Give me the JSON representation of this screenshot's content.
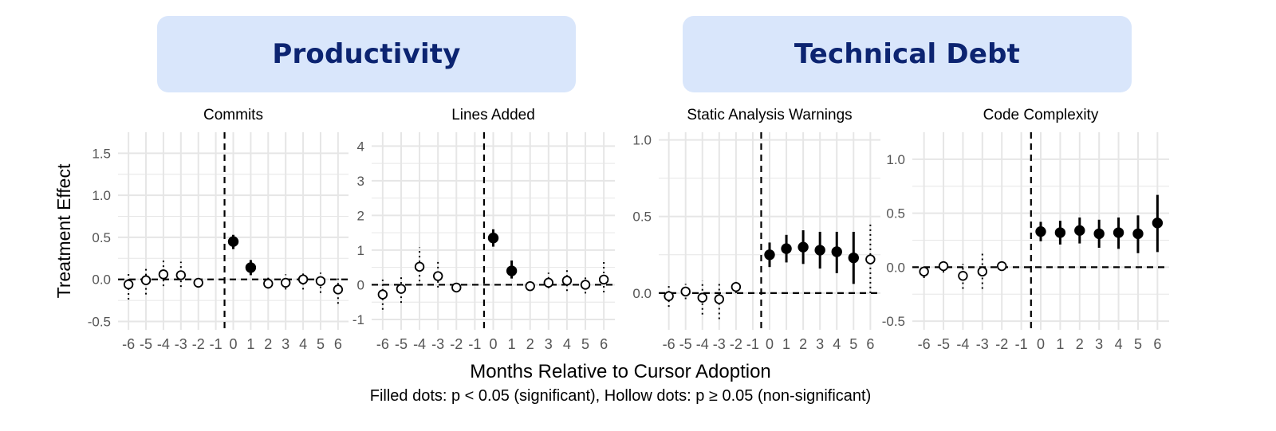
{
  "groups": [
    {
      "label": "Productivity"
    },
    {
      "label": "Technical Debt"
    }
  ],
  "colors": {
    "group_box": "#d9e6fb",
    "group_text": "#0c2471",
    "grid": "#e6e6e6",
    "marker": "#000000"
  },
  "x_axis_title": "Months Relative to Cursor Adoption",
  "y_axis_title": "Treatment Effect",
  "footnote": "Filled dots: p < 0.05 (significant), Hollow dots: p ≥ 0.05 (non-significant)",
  "chart_data": [
    {
      "type": "scatter",
      "title": "Commits",
      "x": [
        -6,
        -5,
        -4,
        -3,
        -2,
        -1,
        0,
        1,
        2,
        3,
        4,
        5,
        6
      ],
      "xticks": [
        "-6",
        "-5",
        "-4",
        "-3",
        "-2",
        "-1",
        "0",
        "1",
        "2",
        "3",
        "4",
        "5",
        "6"
      ],
      "ylim": [
        -0.6,
        1.75
      ],
      "yticks": [
        -0.5,
        0.0,
        0.5,
        1.0,
        1.5
      ],
      "ytick_labels": [
        "-0.5",
        "0.0",
        "0.5",
        "1.0",
        "1.5"
      ],
      "points": [
        {
          "x": -6,
          "y": -0.06,
          "lo": -0.24,
          "hi": 0.1,
          "sig": false
        },
        {
          "x": -5,
          "y": -0.01,
          "lo": -0.18,
          "hi": 0.15,
          "sig": false
        },
        {
          "x": -4,
          "y": 0.06,
          "lo": -0.08,
          "hi": 0.24,
          "sig": false
        },
        {
          "x": -3,
          "y": 0.05,
          "lo": -0.09,
          "hi": 0.21,
          "sig": false
        },
        {
          "x": -2,
          "y": -0.04,
          "lo": -0.08,
          "hi": 0.01,
          "sig": false
        },
        {
          "x": 0,
          "y": 0.45,
          "lo": 0.36,
          "hi": 0.53,
          "sig": true
        },
        {
          "x": 1,
          "y": 0.14,
          "lo": 0.05,
          "hi": 0.23,
          "sig": true
        },
        {
          "x": 2,
          "y": -0.05,
          "lo": -0.11,
          "hi": 0.02,
          "sig": false
        },
        {
          "x": 3,
          "y": -0.04,
          "lo": -0.12,
          "hi": 0.06,
          "sig": false
        },
        {
          "x": 4,
          "y": 0.0,
          "lo": -0.12,
          "hi": 0.1,
          "sig": false
        },
        {
          "x": 5,
          "y": -0.02,
          "lo": -0.16,
          "hi": 0.08,
          "sig": false
        },
        {
          "x": 6,
          "y": -0.12,
          "lo": -0.29,
          "hi": 0.01,
          "sig": false
        }
      ]
    },
    {
      "type": "scatter",
      "title": "Lines Added",
      "x": [
        -6,
        -5,
        -4,
        -3,
        -2,
        -1,
        0,
        1,
        2,
        3,
        4,
        5,
        6
      ],
      "xticks": [
        "-6",
        "-5",
        "-4",
        "-3",
        "-2",
        "-1",
        "0",
        "1",
        "2",
        "3",
        "4",
        "5",
        "6"
      ],
      "ylim": [
        -1.3,
        4.4
      ],
      "yticks": [
        -1,
        0,
        1,
        2,
        3,
        4
      ],
      "ytick_labels": [
        "-1",
        "0",
        "1",
        "2",
        "3",
        "4"
      ],
      "points": [
        {
          "x": -6,
          "y": -0.28,
          "lo": -0.72,
          "hi": 0.15,
          "sig": false
        },
        {
          "x": -5,
          "y": -0.12,
          "lo": -0.52,
          "hi": 0.28,
          "sig": false
        },
        {
          "x": -4,
          "y": 0.52,
          "lo": 0.1,
          "hi": 1.08,
          "sig": false
        },
        {
          "x": -3,
          "y": 0.25,
          "lo": -0.08,
          "hi": 0.68,
          "sig": false
        },
        {
          "x": -2,
          "y": -0.08,
          "lo": -0.18,
          "hi": 0.05,
          "sig": false
        },
        {
          "x": 0,
          "y": 1.35,
          "lo": 1.1,
          "hi": 1.6,
          "sig": true
        },
        {
          "x": 1,
          "y": 0.4,
          "lo": 0.18,
          "hi": 0.7,
          "sig": true
        },
        {
          "x": 2,
          "y": -0.04,
          "lo": -0.14,
          "hi": 0.1,
          "sig": false
        },
        {
          "x": 3,
          "y": 0.06,
          "lo": -0.1,
          "hi": 0.35,
          "sig": false
        },
        {
          "x": 4,
          "y": 0.12,
          "lo": -0.18,
          "hi": 0.48,
          "sig": false
        },
        {
          "x": 5,
          "y": 0.0,
          "lo": -0.25,
          "hi": 0.28,
          "sig": false
        },
        {
          "x": 6,
          "y": 0.15,
          "lo": -0.22,
          "hi": 0.68,
          "sig": false
        }
      ]
    },
    {
      "type": "scatter",
      "title": "Static Analysis Warnings",
      "x": [
        -6,
        -5,
        -4,
        -3,
        -2,
        -1,
        0,
        1,
        2,
        3,
        4,
        5,
        6
      ],
      "xticks": [
        "-6",
        "-5",
        "-4",
        "-3",
        "-2",
        "-1",
        "0",
        "1",
        "2",
        "3",
        "4",
        "5",
        "6"
      ],
      "ylim": [
        -0.24,
        1.05
      ],
      "yticks": [
        0.0,
        0.5,
        1.0
      ],
      "ytick_labels": [
        "0.0",
        "0.5",
        "1.0"
      ],
      "points": [
        {
          "x": -6,
          "y": -0.02,
          "lo": -0.09,
          "hi": 0.05,
          "sig": false
        },
        {
          "x": -5,
          "y": 0.01,
          "lo": -0.04,
          "hi": 0.06,
          "sig": false
        },
        {
          "x": -4,
          "y": -0.03,
          "lo": -0.14,
          "hi": 0.08,
          "sig": false
        },
        {
          "x": -3,
          "y": -0.04,
          "lo": -0.17,
          "hi": 0.08,
          "sig": false
        },
        {
          "x": -2,
          "y": 0.04,
          "lo": 0.0,
          "hi": 0.08,
          "sig": false
        },
        {
          "x": 0,
          "y": 0.25,
          "lo": 0.17,
          "hi": 0.33,
          "sig": true
        },
        {
          "x": 1,
          "y": 0.29,
          "lo": 0.2,
          "hi": 0.38,
          "sig": true
        },
        {
          "x": 2,
          "y": 0.3,
          "lo": 0.19,
          "hi": 0.41,
          "sig": true
        },
        {
          "x": 3,
          "y": 0.28,
          "lo": 0.16,
          "hi": 0.4,
          "sig": true
        },
        {
          "x": 4,
          "y": 0.27,
          "lo": 0.13,
          "hi": 0.4,
          "sig": true
        },
        {
          "x": 5,
          "y": 0.23,
          "lo": 0.06,
          "hi": 0.4,
          "sig": true
        },
        {
          "x": 6,
          "y": 0.22,
          "lo": 0.0,
          "hi": 0.46,
          "sig": false
        }
      ]
    },
    {
      "type": "scatter",
      "title": "Code Complexity",
      "x": [
        -6,
        -5,
        -4,
        -3,
        -2,
        -1,
        0,
        1,
        2,
        3,
        4,
        5,
        6
      ],
      "xticks": [
        "-6",
        "-5",
        "-4",
        "-3",
        "-2",
        "-1",
        "0",
        "1",
        "2",
        "3",
        "4",
        "5",
        "6"
      ],
      "ylim": [
        -0.58,
        1.25
      ],
      "yticks": [
        -0.5,
        0.0,
        0.5,
        1.0
      ],
      "ytick_labels": [
        "-0.5",
        "0.0",
        "0.5",
        "1.0"
      ],
      "points": [
        {
          "x": -6,
          "y": -0.04,
          "lo": -0.1,
          "hi": 0.03,
          "sig": false
        },
        {
          "x": -5,
          "y": 0.01,
          "lo": -0.05,
          "hi": 0.07,
          "sig": false
        },
        {
          "x": -4,
          "y": -0.08,
          "lo": -0.2,
          "hi": 0.03,
          "sig": false
        },
        {
          "x": -3,
          "y": -0.04,
          "lo": -0.2,
          "hi": 0.14,
          "sig": false
        },
        {
          "x": -2,
          "y": 0.01,
          "lo": -0.03,
          "hi": 0.05,
          "sig": false
        },
        {
          "x": 0,
          "y": 0.33,
          "lo": 0.24,
          "hi": 0.42,
          "sig": true
        },
        {
          "x": 1,
          "y": 0.32,
          "lo": 0.21,
          "hi": 0.43,
          "sig": true
        },
        {
          "x": 2,
          "y": 0.34,
          "lo": 0.22,
          "hi": 0.46,
          "sig": true
        },
        {
          "x": 3,
          "y": 0.31,
          "lo": 0.18,
          "hi": 0.44,
          "sig": true
        },
        {
          "x": 4,
          "y": 0.32,
          "lo": 0.17,
          "hi": 0.46,
          "sig": true
        },
        {
          "x": 5,
          "y": 0.31,
          "lo": 0.13,
          "hi": 0.48,
          "sig": true
        },
        {
          "x": 6,
          "y": 0.41,
          "lo": 0.14,
          "hi": 0.67,
          "sig": true
        }
      ]
    }
  ]
}
